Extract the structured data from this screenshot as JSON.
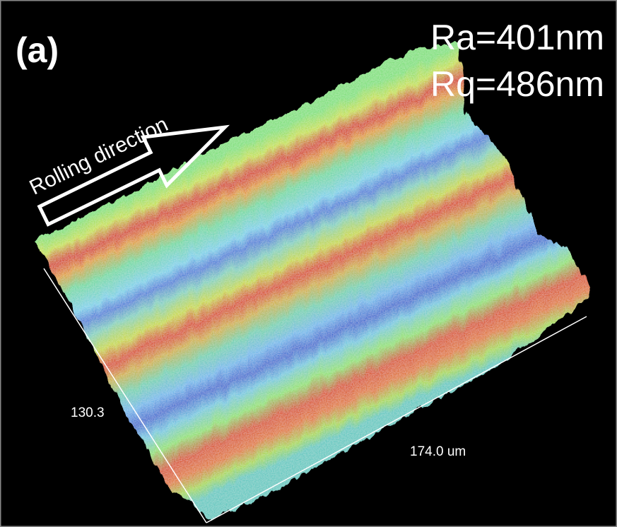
{
  "panel_label": "(a)",
  "roughness": {
    "ra": "Ra=401nm",
    "rq": "Rq=486nm"
  },
  "arrow_label": "Rolling direction",
  "axes": {
    "y_label": "130.3",
    "x_label": "174.0 um"
  }
}
